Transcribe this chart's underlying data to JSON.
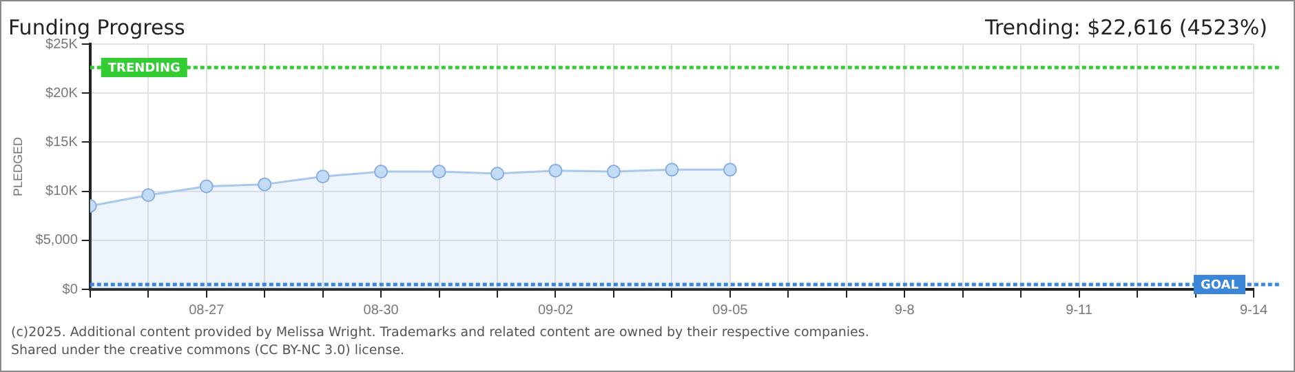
{
  "chart_data": {
    "type": "area",
    "title": "Funding Progress",
    "subtitle": "Trending: $22,616 (4523%)",
    "ylabel": "PLEDGED",
    "x": [
      "--08-25",
      "--08-26",
      "--08-27",
      "--08-28",
      "--08-29",
      "--08-30",
      "--08-31",
      "--09-01",
      "--09-02",
      "--09-03",
      "--09-04",
      "--09-05"
    ],
    "series": [
      {
        "color": "#a8c8ec",
        "values": [
          8500,
          9600,
          10500,
          10700,
          11500,
          12000,
          12000,
          11800,
          12100,
          12000,
          12200,
          12200
        ]
      }
    ],
    "xlim": [
      "--08-25",
      "--09-14"
    ],
    "xticks": [
      {
        "value": "--08-25",
        "label": null
      },
      {
        "value": "--08-26",
        "label": null
      },
      {
        "value": "--08-27",
        "label": "08-27"
      },
      {
        "value": "--08-28",
        "label": null
      },
      {
        "value": "--08-29",
        "label": null
      },
      {
        "value": "--08-30",
        "label": "08-30"
      },
      {
        "value": "--08-31",
        "label": null
      },
      {
        "value": "--09-01",
        "label": null
      },
      {
        "value": "--09-02",
        "label": "09-02"
      },
      {
        "value": "--09-03",
        "label": null
      },
      {
        "value": "--09-04",
        "label": null
      },
      {
        "value": "--09-05",
        "label": "09-05"
      },
      {
        "value": "--09-06",
        "label": null
      },
      {
        "value": "--09-07",
        "label": null
      },
      {
        "value": "--09-08",
        "label": "9-8"
      },
      {
        "value": "--09-09",
        "label": null
      },
      {
        "value": "--09-10",
        "label": null
      },
      {
        "value": "--09-11",
        "label": "9-11"
      },
      {
        "value": "--09-12",
        "label": null
      },
      {
        "value": "--09-13",
        "label": null
      },
      {
        "value": "--09-14",
        "label": "9-14"
      }
    ],
    "ylim": [
      0,
      25000
    ],
    "yticks": [
      {
        "value": 0,
        "label": "$0"
      },
      {
        "value": 5000,
        "label": "$5,000"
      },
      {
        "value": 10000,
        "label": "$10K"
      },
      {
        "value": 15000,
        "label": "$15K"
      },
      {
        "value": 20000,
        "label": "$20K"
      },
      {
        "value": 25000,
        "label": "$25K"
      }
    ],
    "ref_lines": [
      {
        "axis": "y",
        "value": 22616,
        "label": "TRENDING",
        "color": "#33cc33",
        "line_style": "dotted"
      },
      {
        "axis": "y",
        "value": 500,
        "label": "GOAL",
        "color": "#3a86d8",
        "line_style": "dotted"
      }
    ],
    "grid": true,
    "marker": "circle",
    "annotations": [
      "(c)2025. Additional content provided by Melissa Wright. Trademarks and related content are owned by their respective companies.",
      "Shared under the creative commons (CC BY-NC 3.0) license."
    ]
  }
}
